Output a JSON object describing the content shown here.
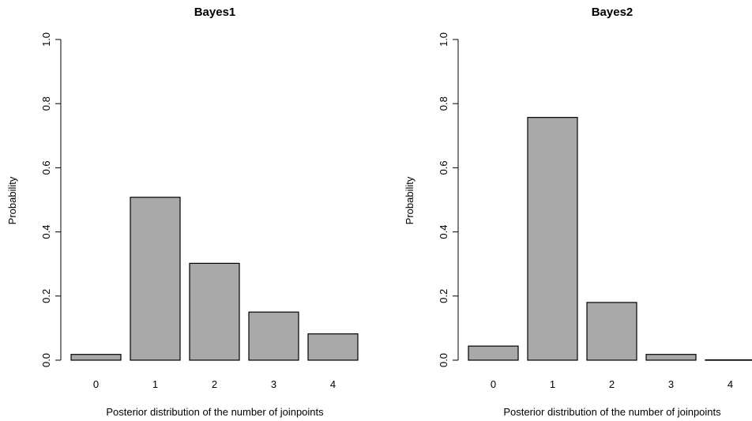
{
  "chart_data": [
    {
      "type": "bar",
      "title": "Bayes1",
      "xlabel": "Posterior distribution of the number of joinpoints",
      "ylabel": "Probability",
      "categories": [
        "0",
        "1",
        "2",
        "3",
        "4"
      ],
      "values": [
        0.018,
        0.508,
        0.302,
        0.15,
        0.082
      ],
      "ylim": [
        0,
        1.0
      ],
      "yticks": [
        "0.0",
        "0.2",
        "0.4",
        "0.6",
        "0.8",
        "1.0"
      ],
      "bar_color": "#A9A9A9",
      "grid": false,
      "legend": "none"
    },
    {
      "type": "bar",
      "title": "Bayes2",
      "xlabel": "Posterior distribution of the number of joinpoints",
      "ylabel": "Probability",
      "categories": [
        "0",
        "1",
        "2",
        "3",
        "4"
      ],
      "values": [
        0.044,
        0.757,
        0.18,
        0.018,
        0.001
      ],
      "ylim": [
        0,
        1.0
      ],
      "yticks": [
        "0.0",
        "0.2",
        "0.4",
        "0.6",
        "0.8",
        "1.0"
      ],
      "bar_color": "#A9A9A9",
      "grid": false,
      "legend": "none"
    }
  ]
}
